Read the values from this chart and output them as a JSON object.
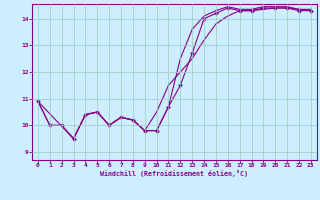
{
  "xlabel": "Windchill (Refroidissement éolien,°C)",
  "bg_color": "#cceeff",
  "line_color": "#880088",
  "grid_color": "#99ccbb",
  "xlim": [
    -0.5,
    23.5
  ],
  "ylim": [
    8.7,
    14.55
  ],
  "yticks": [
    9,
    10,
    11,
    12,
    13,
    14
  ],
  "xticks": [
    0,
    1,
    2,
    3,
    4,
    5,
    6,
    7,
    8,
    9,
    10,
    11,
    12,
    13,
    14,
    15,
    16,
    17,
    18,
    19,
    20,
    21,
    22,
    23
  ],
  "line1_x": [
    0,
    1,
    2,
    3,
    4,
    5,
    6,
    7,
    8,
    9,
    10,
    11,
    12,
    13,
    14,
    15,
    16,
    17,
    18,
    19,
    20,
    21,
    22,
    23
  ],
  "line1_y": [
    10.9,
    10.0,
    10.0,
    9.5,
    10.4,
    10.5,
    10.0,
    10.3,
    10.2,
    9.8,
    9.8,
    10.7,
    11.5,
    12.7,
    14.0,
    14.2,
    14.4,
    14.3,
    14.3,
    14.4,
    14.4,
    14.4,
    14.3,
    14.3
  ],
  "line2_x": [
    0,
    1,
    2,
    3,
    4,
    5,
    6,
    7,
    8,
    9,
    10,
    11,
    12,
    13,
    14,
    15,
    16,
    17,
    18,
    19,
    20,
    21,
    22,
    23
  ],
  "line2_y": [
    10.9,
    10.0,
    10.0,
    9.5,
    10.4,
    10.5,
    10.0,
    10.3,
    10.2,
    9.8,
    9.8,
    10.7,
    12.5,
    13.6,
    14.1,
    14.3,
    14.45,
    14.35,
    14.35,
    14.45,
    14.45,
    14.45,
    14.35,
    14.35
  ],
  "line3_x": [
    0,
    3,
    4,
    5,
    6,
    7,
    8,
    9,
    10,
    11,
    12,
    13,
    14,
    15,
    16,
    17,
    18,
    19,
    20,
    21,
    22,
    23
  ],
  "line3_y": [
    10.9,
    9.5,
    10.4,
    10.5,
    10.0,
    10.3,
    10.2,
    9.8,
    10.5,
    11.5,
    12.0,
    12.5,
    13.2,
    13.8,
    14.1,
    14.3,
    14.3,
    14.35,
    14.4,
    14.4,
    14.35,
    14.3
  ]
}
